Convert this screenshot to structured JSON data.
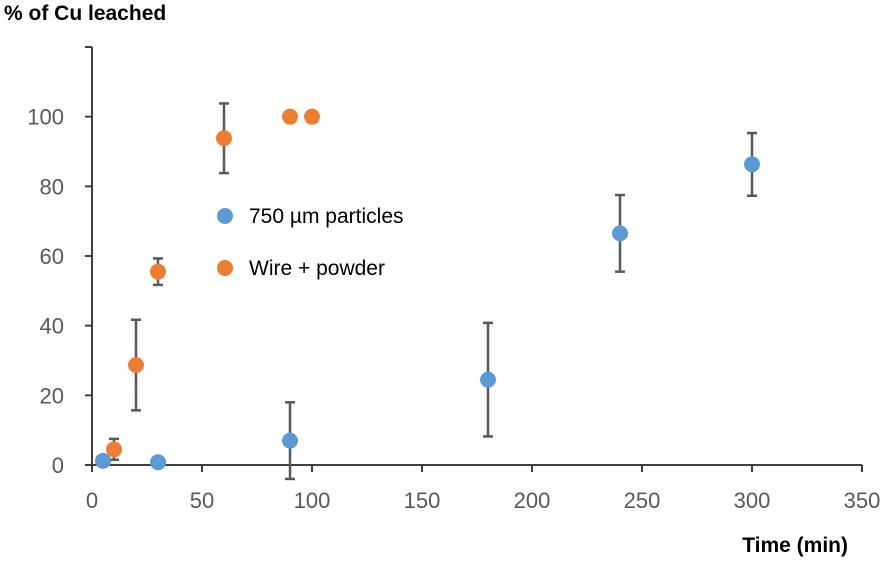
{
  "chart_data": {
    "type": "scatter",
    "ylabel": "% of Cu leached",
    "xlabel": "Time (min)",
    "xlim": [
      0,
      350
    ],
    "ylim": [
      0,
      120
    ],
    "xticks": [
      "0",
      "50",
      "100",
      "150",
      "200",
      "250",
      "300",
      "350"
    ],
    "yticks": [
      "0",
      "20",
      "40",
      "60",
      "80",
      "100"
    ],
    "grid": false,
    "legend_position": "center-left",
    "series": [
      {
        "name": "750 µm particles",
        "color": "#5B9BD5",
        "points": [
          {
            "x": 5,
            "y": 1.2,
            "err": null
          },
          {
            "x": 30,
            "y": 0.8,
            "err": null
          },
          {
            "x": 90,
            "y": 7,
            "err": 11
          },
          {
            "x": 180,
            "y": 24.5,
            "err": 16.3
          },
          {
            "x": 240,
            "y": 66.5,
            "err": 11
          },
          {
            "x": 300,
            "y": 86.3,
            "err": 9
          }
        ]
      },
      {
        "name": "Wire + powder",
        "color": "#ED7D31",
        "points": [
          {
            "x": 10,
            "y": 4.5,
            "err": 3
          },
          {
            "x": 20,
            "y": 28.7,
            "err": 13
          },
          {
            "x": 30,
            "y": 55.5,
            "err": 3.8
          },
          {
            "x": 60,
            "y": 93.8,
            "err": 10
          },
          {
            "x": 90,
            "y": 100,
            "err": null
          },
          {
            "x": 100,
            "y": 100,
            "err": null
          }
        ]
      }
    ]
  }
}
